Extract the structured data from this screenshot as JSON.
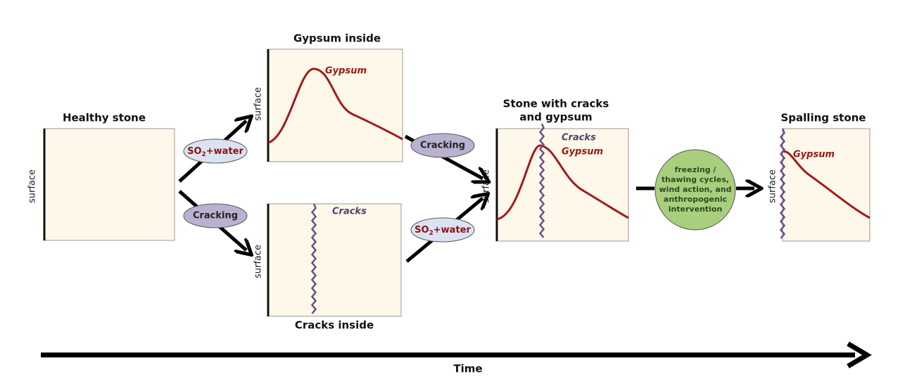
{
  "panels": [
    {
      "title": "Healthy stone",
      "surface": "surface"
    },
    {
      "title": "Gypsum inside",
      "surface": "surface",
      "gypsum": "Gypsum"
    },
    {
      "title": "Cracks inside",
      "surface": "surface",
      "cracks": "Cracks"
    },
    {
      "title_lines": [
        "Stone with cracks",
        "and gypsum"
      ],
      "surface": "surface",
      "cracks": "Cracks",
      "gypsum": "Gypsum"
    },
    {
      "title": "Spalling stone",
      "surface": "surface",
      "gypsum": "Gypsum"
    }
  ],
  "processes": [
    {
      "main": "SO",
      "sub": "2",
      "rest": "+water"
    },
    {
      "label": "Cracking"
    },
    {
      "label": "Cracking"
    },
    {
      "main": "SO",
      "sub": "2",
      "rest": "+water"
    }
  ],
  "weathering": [
    "freezing /",
    "thawing cycles,",
    "wind action, and",
    "anthropogenic",
    "intervention"
  ],
  "time": "Time"
}
